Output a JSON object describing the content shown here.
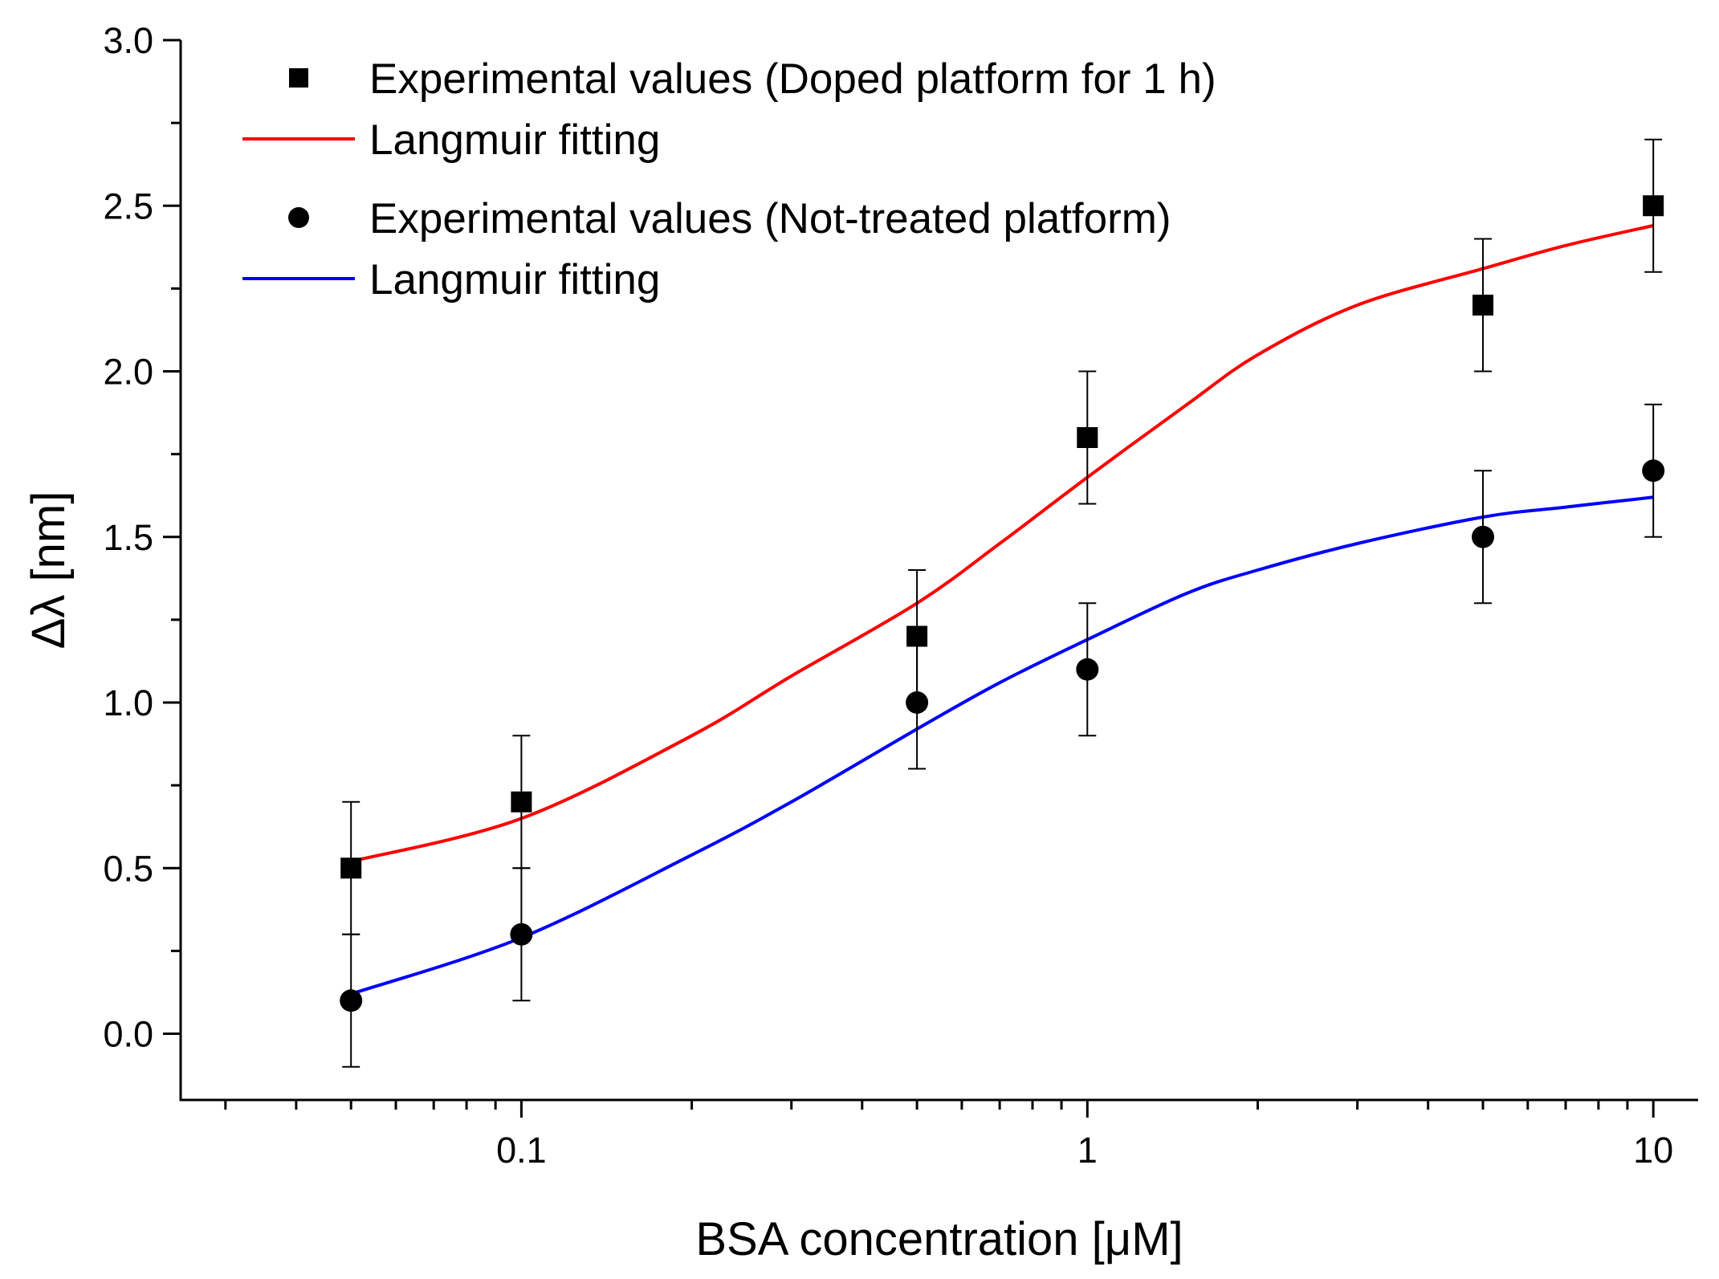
{
  "chart_data": {
    "type": "scatter",
    "title": "",
    "xlabel": "BSA concentration [μM]",
    "ylabel": "Δλ [nm]",
    "x_scale": "log",
    "xlim": [
      0.025,
      12
    ],
    "ylim": [
      -0.2,
      3.0
    ],
    "x_tick_labels": [
      {
        "value": 0.1,
        "label": "0.1"
      },
      {
        "value": 1,
        "label": "1"
      },
      {
        "value": 10,
        "label": "10"
      }
    ],
    "y_tick_labels": [
      {
        "value": 0.0,
        "label": "0.0"
      },
      {
        "value": 0.5,
        "label": "0.5"
      },
      {
        "value": 1.0,
        "label": "1.0"
      },
      {
        "value": 1.5,
        "label": "1.5"
      },
      {
        "value": 2.0,
        "label": "2.0"
      },
      {
        "value": 2.5,
        "label": "2.5"
      },
      {
        "value": 3.0,
        "label": "3.0"
      }
    ],
    "grid": false,
    "legend_position": "top-left",
    "series": [
      {
        "name": "Experimental values (Doped platform for 1 h)",
        "kind": "scatter",
        "marker": "square",
        "color": "#000000",
        "x": [
          0.05,
          0.1,
          0.5,
          1,
          5,
          10
        ],
        "y": [
          0.5,
          0.7,
          1.2,
          1.8,
          2.2,
          2.5
        ],
        "error": [
          0.2,
          0.2,
          0.2,
          0.2,
          0.2,
          0.2
        ]
      },
      {
        "name": "Langmuir fitting",
        "kind": "line",
        "color": "#ff0000",
        "x": [
          0.05,
          0.1,
          0.2,
          0.3,
          0.5,
          0.7,
          1,
          1.5,
          2,
          3,
          5,
          7,
          10
        ],
        "y": [
          0.52,
          0.65,
          0.9,
          1.08,
          1.3,
          1.48,
          1.68,
          1.9,
          2.05,
          2.2,
          2.31,
          2.38,
          2.44
        ]
      },
      {
        "name": "Experimental values (Not-treated platform)",
        "kind": "scatter",
        "marker": "circle",
        "color": "#000000",
        "x": [
          0.05,
          0.1,
          0.5,
          1,
          5,
          10
        ],
        "y": [
          0.1,
          0.3,
          1.0,
          1.1,
          1.5,
          1.7
        ],
        "error": [
          0.2,
          0.2,
          0.2,
          0.2,
          0.2,
          0.2
        ]
      },
      {
        "name": "Langmuir fitting",
        "kind": "line",
        "color": "#0000ff",
        "x": [
          0.05,
          0.1,
          0.2,
          0.3,
          0.5,
          0.7,
          1,
          1.5,
          2,
          3,
          5,
          7,
          10
        ],
        "y": [
          0.12,
          0.29,
          0.54,
          0.7,
          0.92,
          1.06,
          1.19,
          1.33,
          1.4,
          1.48,
          1.56,
          1.59,
          1.62
        ]
      }
    ]
  }
}
